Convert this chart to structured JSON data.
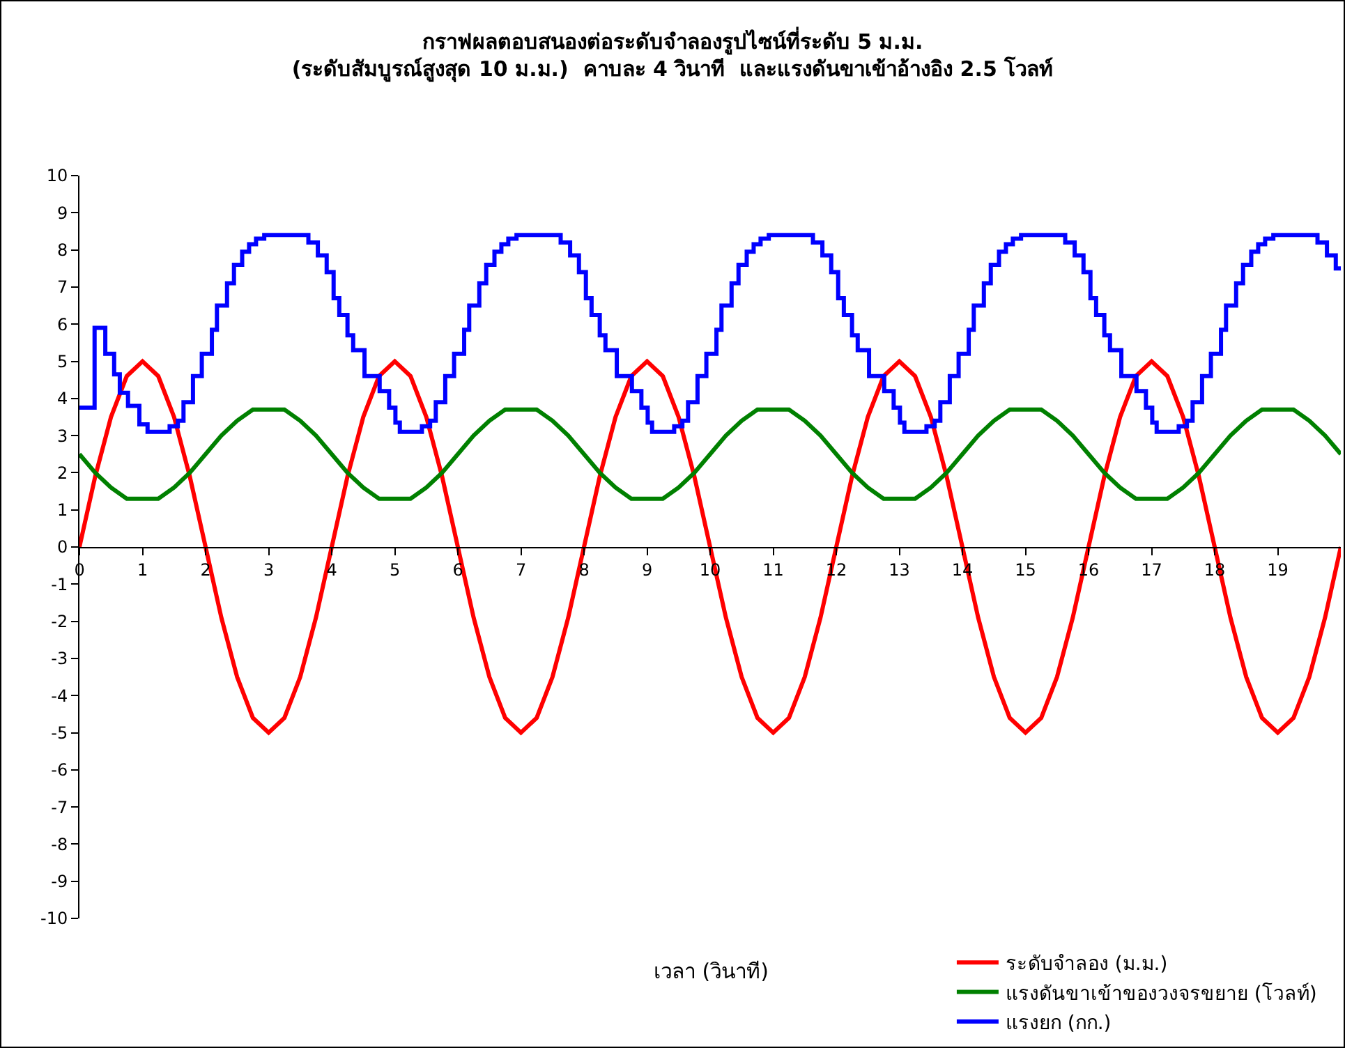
{
  "chart_data": {
    "type": "line",
    "title": "กราฟผลตอบสนองต่อระดับจำลองรูปไซน์ที่ระดับ 5 ม.ม.\n(ระดับสัมบูรณ์สูงสุด 10 ม.ม.)  คาบละ 4 วินาที  และแรงดันขาเข้าอ้างอิง 2.5 โวลท์",
    "xlabel": "เวลา (วินาที)",
    "x": [
      0,
      0.25,
      0.5,
      0.75,
      1,
      1.25,
      1.5,
      1.75,
      2,
      2.25,
      2.5,
      2.75,
      3,
      3.25,
      3.5,
      3.75,
      4,
      4.25,
      4.5,
      4.75,
      5,
      5.25,
      5.5,
      5.75,
      6,
      6.25,
      6.5,
      6.75,
      7,
      7.25,
      7.5,
      7.75,
      8,
      8.25,
      8.5,
      8.75,
      9,
      9.25,
      9.5,
      9.75,
      10,
      10.25,
      10.5,
      10.75,
      11,
      11.25,
      11.5,
      11.75,
      12,
      12.25,
      12.5,
      12.75,
      13,
      13.25,
      13.5,
      13.75,
      14,
      14.25,
      14.5,
      14.75,
      15,
      15.25,
      15.5,
      15.75,
      16,
      16.25,
      16.5,
      16.75,
      17,
      17.25,
      17.5,
      17.75,
      18,
      18.25,
      18.5,
      18.75,
      19,
      19.25,
      19.5,
      19.75,
      20
    ],
    "series": [
      {
        "name": "ระดับจำลอง (ม.ม.)",
        "color": "#ff0000",
        "values": [
          0,
          1.9,
          3.5,
          4.6,
          5,
          4.6,
          3.5,
          1.9,
          0,
          -1.9,
          -3.5,
          -4.6,
          -5,
          -4.6,
          -3.5,
          -1.9,
          0,
          1.9,
          3.5,
          4.6,
          5,
          4.6,
          3.5,
          1.9,
          0,
          -1.9,
          -3.5,
          -4.6,
          -5,
          -4.6,
          -3.5,
          -1.9,
          0,
          1.9,
          3.5,
          4.6,
          5,
          4.6,
          3.5,
          1.9,
          0,
          -1.9,
          -3.5,
          -4.6,
          -5,
          -4.6,
          -3.5,
          -1.9,
          0,
          1.9,
          3.5,
          4.6,
          5,
          4.6,
          3.5,
          1.9,
          0,
          -1.9,
          -3.5,
          -4.6,
          -5,
          -4.6,
          -3.5,
          -1.9,
          0,
          1.9,
          3.5,
          4.6,
          5,
          4.6,
          3.5,
          1.9,
          0,
          -1.9,
          -3.5,
          -4.6,
          -5,
          -4.6,
          -3.5,
          -1.9,
          0
        ]
      },
      {
        "name": "แรงดันขาเข้าของวงจรขยาย (โวลท์)",
        "color": "#008000",
        "values": [
          2.5,
          2.0,
          1.6,
          1.3,
          1.3,
          1.3,
          1.6,
          2.0,
          2.5,
          3.0,
          3.4,
          3.7,
          3.7,
          3.7,
          3.4,
          3.0,
          2.5,
          2.0,
          1.6,
          1.3,
          1.3,
          1.3,
          1.6,
          2.0,
          2.5,
          3.0,
          3.4,
          3.7,
          3.7,
          3.7,
          3.4,
          3.0,
          2.5,
          2.0,
          1.6,
          1.3,
          1.3,
          1.3,
          1.6,
          2.0,
          2.5,
          3.0,
          3.4,
          3.7,
          3.7,
          3.7,
          3.4,
          3.0,
          2.5,
          2.0,
          1.6,
          1.3,
          1.3,
          1.3,
          1.6,
          2.0,
          2.5,
          3.0,
          3.4,
          3.7,
          3.7,
          3.7,
          3.4,
          3.0,
          2.5,
          2.0,
          1.6,
          1.3,
          1.3,
          1.3,
          1.6,
          2.0,
          2.5,
          3.0,
          3.4,
          3.7,
          3.7,
          3.7,
          3.4,
          3.0,
          2.5
        ]
      },
      {
        "name": "แรงยก (กก.)",
        "color": "#0000ff",
        "type": "step",
        "x": [
          0,
          0.24,
          0.41,
          0.55,
          0.64,
          0.77,
          0.95,
          1.08,
          1.43,
          1.56,
          1.65,
          1.8,
          1.94,
          2.1,
          2.18,
          2.34,
          2.45,
          2.58,
          2.69,
          2.8,
          2.93,
          3.63,
          3.78,
          3.92,
          4.03,
          4.12,
          4.25,
          4.34,
          4.52,
          4.76,
          4.91,
          5.01,
          5.08,
          5.43,
          5.56,
          5.65,
          5.8,
          5.94,
          6.1,
          6.18,
          6.34,
          6.45,
          6.58,
          6.69,
          6.8,
          6.93,
          7.63,
          7.78,
          7.92,
          8.03,
          8.12,
          8.25,
          8.34,
          8.52,
          8.76,
          8.91,
          9.01,
          9.08,
          9.43,
          9.56,
          9.65,
          9.8,
          9.94,
          10.1,
          10.18,
          10.34,
          10.45,
          10.58,
          10.69,
          10.8,
          10.93,
          11.63,
          11.78,
          11.92,
          12.03,
          12.12,
          12.25,
          12.34,
          12.52,
          12.76,
          12.91,
          13.01,
          13.08,
          13.43,
          13.56,
          13.65,
          13.8,
          13.94,
          14.1,
          14.18,
          14.34,
          14.45,
          14.58,
          14.69,
          14.8,
          14.93,
          15.63,
          15.78,
          15.92,
          16.03,
          16.12,
          16.25,
          16.34,
          16.52,
          16.76,
          16.91,
          17.01,
          17.08,
          17.43,
          17.56,
          17.65,
          17.8,
          17.94,
          18.1,
          18.18,
          18.34,
          18.45,
          18.58,
          18.69,
          18.8,
          18.93,
          19.63,
          19.78,
          19.92,
          20
        ],
        "values": [
          3.75,
          5.9,
          5.2,
          4.65,
          4.15,
          3.8,
          3.3,
          3.1,
          3.25,
          3.4,
          3.9,
          4.6,
          5.2,
          5.85,
          6.5,
          7.1,
          7.6,
          7.95,
          8.15,
          8.3,
          8.4,
          8.2,
          7.85,
          7.4,
          6.7,
          6.25,
          5.7,
          5.3,
          4.6,
          4.2,
          3.75,
          3.35,
          3.1,
          3.25,
          3.4,
          3.9,
          4.6,
          5.2,
          5.85,
          6.5,
          7.1,
          7.6,
          7.95,
          8.15,
          8.3,
          8.4,
          8.2,
          7.85,
          7.4,
          6.7,
          6.25,
          5.7,
          5.3,
          4.6,
          4.2,
          3.75,
          3.35,
          3.1,
          3.25,
          3.4,
          3.9,
          4.6,
          5.2,
          5.85,
          6.5,
          7.1,
          7.6,
          7.95,
          8.15,
          8.3,
          8.4,
          8.2,
          7.85,
          7.4,
          6.7,
          6.25,
          5.7,
          5.3,
          4.6,
          4.2,
          3.75,
          3.35,
          3.1,
          3.25,
          3.4,
          3.9,
          4.6,
          5.2,
          5.85,
          6.5,
          7.1,
          7.6,
          7.95,
          8.15,
          8.3,
          8.4,
          8.2,
          7.85,
          7.4,
          6.7,
          6.25,
          5.7,
          5.3,
          4.6,
          4.2,
          3.75,
          3.35,
          3.1,
          3.25,
          3.4,
          3.9,
          4.6,
          5.2,
          5.85,
          6.5,
          7.1,
          7.6,
          7.95,
          8.15,
          8.3,
          8.4,
          8.2,
          7.85,
          7.5,
          7.5
        ]
      }
    ],
    "xlim": [
      0,
      20
    ],
    "xticks": [
      0,
      1,
      2,
      3,
      4,
      5,
      6,
      7,
      8,
      9,
      10,
      11,
      12,
      13,
      14,
      15,
      16,
      17,
      18,
      19
    ],
    "ylim": [
      -10,
      10
    ],
    "yticks": [
      -10,
      -9,
      -8,
      -7,
      -6,
      -5,
      -4,
      -3,
      -2,
      -1,
      0,
      1,
      2,
      3,
      4,
      5,
      6,
      7,
      8,
      9,
      10
    ],
    "grid": false,
    "legend": "bottom right",
    "marker": "none",
    "line_style": "solid"
  }
}
